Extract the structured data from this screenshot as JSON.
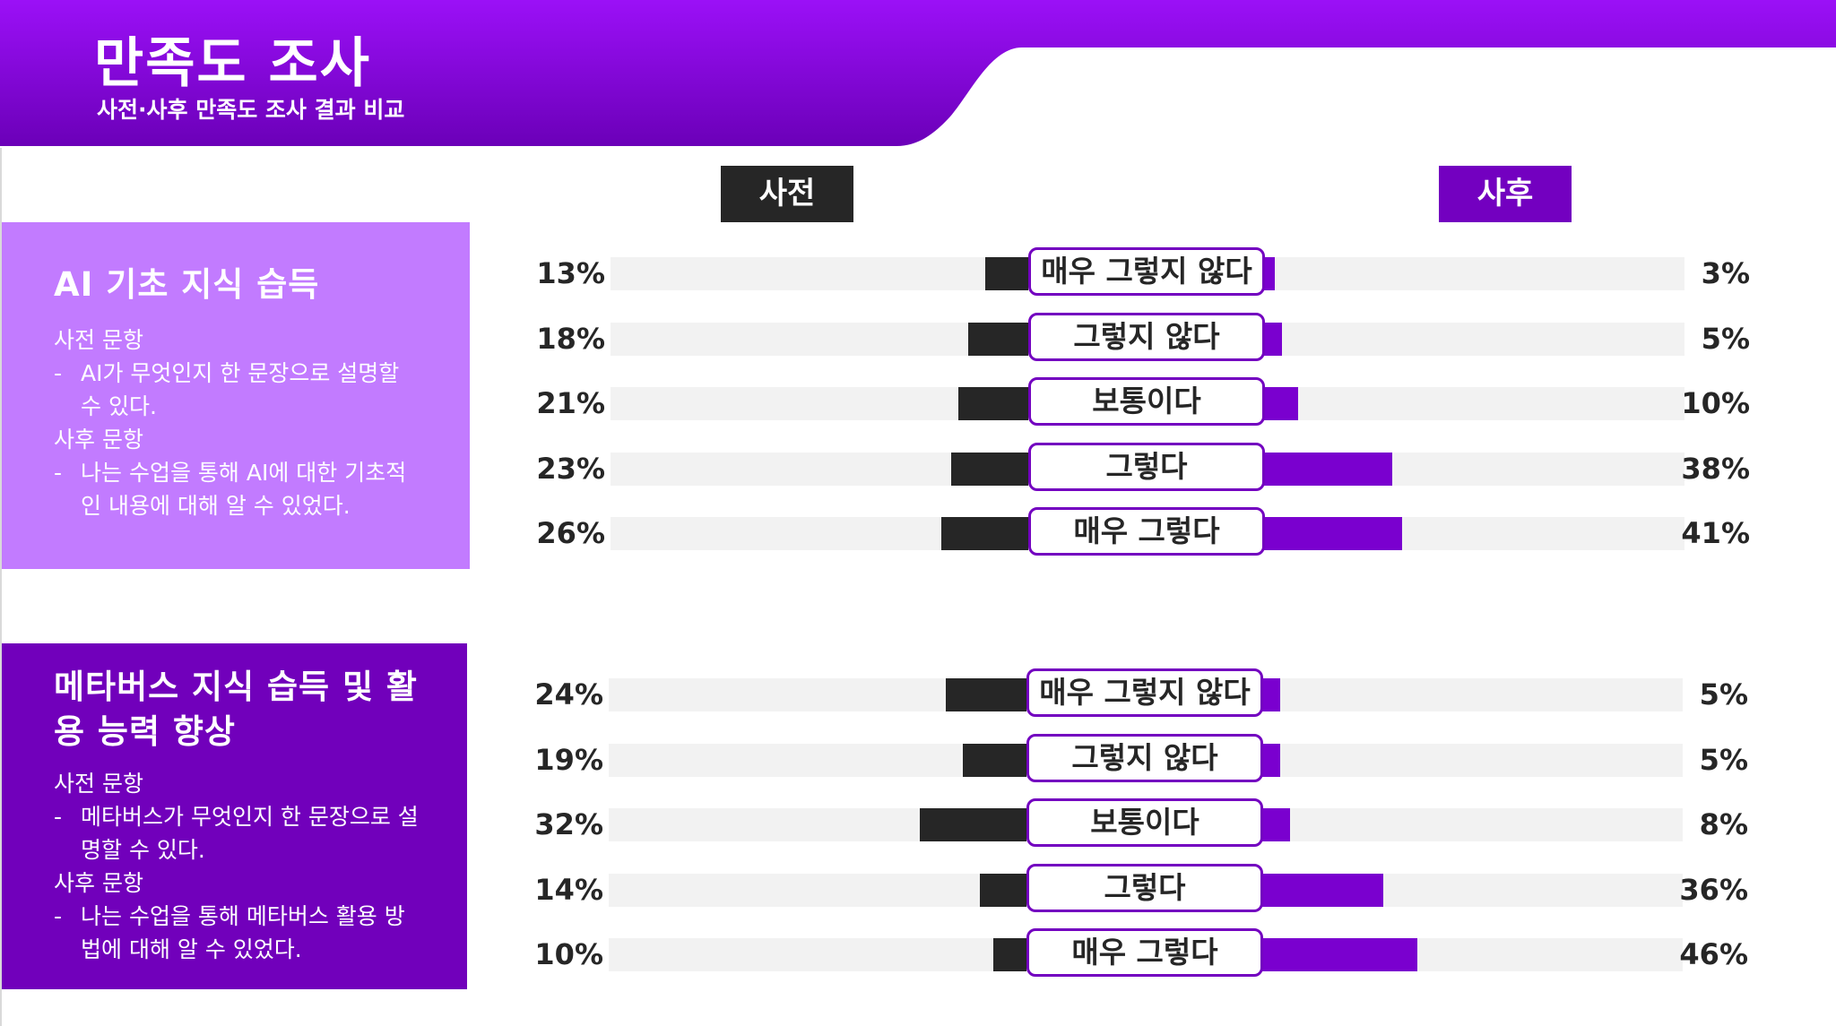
{
  "header": {
    "title": "만족도 조사",
    "subtitle": "사전·사후 만족도 조사 결과 비교"
  },
  "columns": {
    "pre": "사전",
    "post": "사후"
  },
  "panels": [
    {
      "title": "AI 기초 지식 습득",
      "pre_label": "사전 문항",
      "pre_question": "AI가 무엇인지 한 문장으로 설명할 수 있다.",
      "post_label": "사후 문항",
      "post_question": "나는 수업을 통해 AI에 대한 기초적인 내용에 대해 알 수 있었다."
    },
    {
      "title": "메타버스 지식 습득 및 활용 능력 향상",
      "pre_label": "사전 문항",
      "pre_question": "메타버스가 무엇인지 한 문장으로 설명할 수 있다.",
      "post_label": "사후 문항",
      "post_question": "나는 수업을 통해 메타버스 활용 방법에 대해 알 수 있었다."
    }
  ],
  "colors": {
    "pre": "#262626",
    "post": "#7a00cf",
    "header_top": "#9b10f7",
    "header_bottom": "#6b00b8"
  },
  "chart_data": [
    {
      "type": "bar",
      "categories": [
        "매우 그렇지 않다",
        "그렇지 않다",
        "보통이다",
        "그렇다",
        "매우 그렇다"
      ],
      "series": [
        {
          "name": "사전",
          "values": [
            13,
            18,
            21,
            23,
            26
          ],
          "labels": [
            "13%",
            "18%",
            "21%",
            "23%",
            "26%"
          ]
        },
        {
          "name": "사후",
          "values": [
            3,
            5,
            10,
            38,
            41
          ],
          "labels": [
            "3%",
            "5%",
            "10%",
            "38%",
            "41%"
          ]
        }
      ],
      "ylim": [
        0,
        100
      ]
    },
    {
      "type": "bar",
      "categories": [
        "매우 그렇지 않다",
        "그렇지 않다",
        "보통이다",
        "그렇다",
        "매우 그렇다"
      ],
      "series": [
        {
          "name": "사전",
          "values": [
            24,
            19,
            32,
            14,
            10
          ],
          "labels": [
            "24%",
            "19%",
            "32%",
            "14%",
            "10%"
          ]
        },
        {
          "name": "사후",
          "values": [
            5,
            5,
            8,
            36,
            46
          ],
          "labels": [
            "5%",
            "5%",
            "8%",
            "36%",
            "46%"
          ]
        }
      ],
      "ylim": [
        0,
        100
      ]
    }
  ]
}
